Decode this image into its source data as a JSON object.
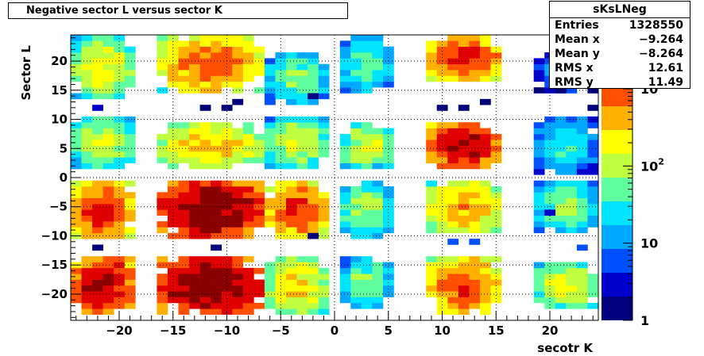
{
  "chart_data": {
    "type": "heatmap",
    "title": "Negative sector L versus sector K",
    "xlabel": "secotr K",
    "ylabel": "Sector L",
    "xlim": [
      -24.5,
      24.5
    ],
    "ylim": [
      -24.5,
      24.5
    ],
    "x_ticks": [
      -20,
      -15,
      -10,
      -5,
      0,
      5,
      10,
      15,
      20
    ],
    "y_ticks": [
      -20,
      -15,
      -10,
      -5,
      0,
      5,
      10,
      15,
      20
    ],
    "x_tick_labels": [
      "−20",
      "−15",
      "−10",
      "−5",
      "0",
      "5",
      "10",
      "15",
      "20"
    ],
    "y_tick_labels": [
      "−20",
      "−15",
      "−10",
      "−5",
      "0",
      "5",
      "10",
      "15",
      "20"
    ],
    "grid": true,
    "color_scale": "log",
    "z_range": [
      1,
      5000
    ],
    "colorbar_ticks": [
      {
        "value": 1,
        "base": "1",
        "exp": ""
      },
      {
        "value": 10,
        "base": "10",
        "exp": ""
      },
      {
        "value": 100,
        "base": "10",
        "exp": "2"
      },
      {
        "value": 1000,
        "base": "10",
        "exp": "3"
      }
    ],
    "palette": [
      "#00007f",
      "#0000cc",
      "#0050ff",
      "#00a8ff",
      "#00e5ff",
      "#5fffa0",
      "#bfff3f",
      "#ffff00",
      "#ffb000",
      "#ff5000",
      "#e00000",
      "#8a0000"
    ],
    "clusters": [
      {
        "x0": -24,
        "x1": -19,
        "y0": 14,
        "y1": 24,
        "k": -24,
        "peak": 220
      },
      {
        "x0": -16,
        "x1": -7,
        "y0": 15,
        "y1": 24,
        "k": -12,
        "peak": 900
      },
      {
        "x0": -6,
        "x1": -1,
        "y0": 13,
        "y1": 21,
        "k": -1,
        "peak": 70
      },
      {
        "x0": 1,
        "x1": 5,
        "y0": 15,
        "y1": 24,
        "k": 1,
        "peak": 60
      },
      {
        "x0": 9,
        "x1": 15,
        "y0": 17,
        "y1": 24,
        "k": 12,
        "peak": 1500
      },
      {
        "x0": 19,
        "x1": 24,
        "y0": 15,
        "y1": 21,
        "k": 24,
        "peak": 20
      },
      {
        "x0": -24,
        "x1": -19,
        "y0": 2,
        "y1": 10,
        "k": -24,
        "peak": 150
      },
      {
        "x0": -16,
        "x1": -7,
        "y0": 2,
        "y1": 9,
        "k": -12,
        "peak": 400
      },
      {
        "x0": -6,
        "x1": -1,
        "y0": 2,
        "y1": 10,
        "k": -1,
        "peak": 150
      },
      {
        "x0": 1,
        "x1": 5,
        "y0": 2,
        "y1": 9,
        "k": 1,
        "peak": 150
      },
      {
        "x0": 9,
        "x1": 15,
        "y0": 2,
        "y1": 9,
        "k": 12,
        "peak": 3000
      },
      {
        "x0": 19,
        "x1": 24,
        "y0": 1,
        "y1": 10,
        "k": 24,
        "peak": 40
      },
      {
        "x0": -24,
        "x1": -19,
        "y0": -10,
        "y1": -1,
        "k": -24,
        "peak": 1500
      },
      {
        "x0": -16,
        "x1": -7,
        "y0": -10,
        "y1": -1,
        "k": -12,
        "peak": 5000
      },
      {
        "x0": -6,
        "x1": -1,
        "y0": -10,
        "y1": -1,
        "k": -1,
        "peak": 1200
      },
      {
        "x0": 1,
        "x1": 5,
        "y0": -10,
        "y1": -1,
        "k": 1,
        "peak": 100
      },
      {
        "x0": 9,
        "x1": 15,
        "y0": -9,
        "y1": -1,
        "k": 12,
        "peak": 500
      },
      {
        "x0": 19,
        "x1": 24,
        "y0": -9,
        "y1": -1,
        "k": 24,
        "peak": 80
      },
      {
        "x0": -24,
        "x1": -19,
        "y0": -23,
        "y1": -14,
        "k": -24,
        "peak": 3000
      },
      {
        "x0": -16,
        "x1": -7,
        "y0": -23,
        "y1": -14,
        "k": -12,
        "peak": 5000
      },
      {
        "x0": -6,
        "x1": -1,
        "y0": -23,
        "y1": -14,
        "k": -1,
        "peak": 300
      },
      {
        "x0": 1,
        "x1": 5,
        "y0": -22,
        "y1": -14,
        "k": 1,
        "peak": 80
      },
      {
        "x0": 9,
        "x1": 15,
        "y0": -23,
        "y1": -14,
        "k": 12,
        "peak": 1000
      },
      {
        "x0": 19,
        "x1": 24,
        "y0": -22,
        "y1": -15,
        "k": 24,
        "peak": 200
      }
    ],
    "stray_bins": [
      {
        "x": -22,
        "y": 12,
        "value": 3
      },
      {
        "x": -12,
        "y": 12,
        "value": 2
      },
      {
        "x": -10,
        "y": 12,
        "value": 2
      },
      {
        "x": -9,
        "y": 13,
        "value": 1
      },
      {
        "x": -2,
        "y": 14,
        "value": 1
      },
      {
        "x": 10,
        "y": 12,
        "value": 1
      },
      {
        "x": 12,
        "y": 12,
        "value": 1
      },
      {
        "x": 14,
        "y": 13,
        "value": 1
      },
      {
        "x": 21,
        "y": 15,
        "value": 2
      },
      {
        "x": 24,
        "y": 12,
        "value": 2
      },
      {
        "x": -22,
        "y": -12,
        "value": 2
      },
      {
        "x": -2,
        "y": -10,
        "value": 2
      },
      {
        "x": 11,
        "y": -11,
        "value": 5
      },
      {
        "x": 13,
        "y": -11,
        "value": 5
      },
      {
        "x": 23,
        "y": -12,
        "value": 5
      },
      {
        "x": 20,
        "y": -6,
        "value": 3
      },
      {
        "x": -11,
        "y": -12,
        "value": 2
      }
    ]
  },
  "stats": {
    "name": "sKsLNeg",
    "rows": [
      {
        "label": "Entries",
        "value": "1328550"
      },
      {
        "label": "Mean x",
        "value": "−9.264"
      },
      {
        "label": "Mean y",
        "value": "−8.264"
      },
      {
        "label": "RMS x",
        "value": "12.61"
      },
      {
        "label": "RMS y",
        "value": "11.49"
      }
    ]
  }
}
